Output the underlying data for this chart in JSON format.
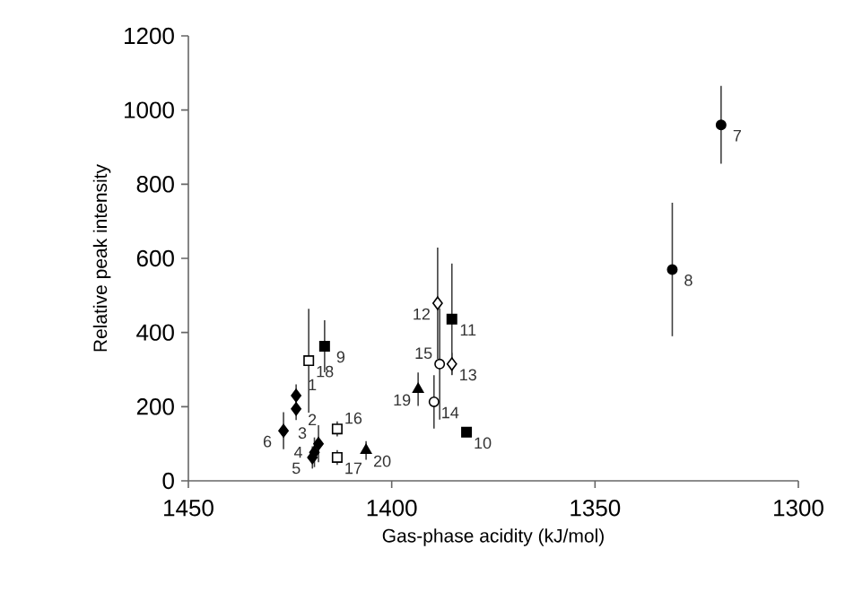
{
  "chart_data": {
    "type": "scatter",
    "xlabel": "Gas-phase acidity (kJ/mol)",
    "ylabel": "Relative peak intensity",
    "xlim": [
      1450,
      1300
    ],
    "xticks": [
      1450,
      1400,
      1350,
      1300
    ],
    "ylim": [
      0,
      1200
    ],
    "yticks": [
      0,
      200,
      400,
      600,
      800,
      1000,
      1200
    ],
    "grid": false,
    "series": [
      {
        "marker": "diamond",
        "color": "#000000",
        "x": [
          1423.5,
          1423.5,
          1418,
          1419,
          1419.5,
          1426.6
        ],
        "values": [
          230,
          194,
          100,
          77,
          63,
          135
        ],
        "errors": [
          30,
          30,
          50,
          40,
          30,
          50
        ]
      },
      {
        "marker": "circle",
        "color": "#000000",
        "x": [
          1319,
          1331
        ],
        "values": [
          960,
          570
        ],
        "errors": [
          105,
          180
        ]
      },
      {
        "marker": "square",
        "color": "#000000",
        "x": [
          1416.5,
          1381.6,
          1385.2
        ],
        "values": [
          363,
          131,
          436
        ],
        "errors": [
          70,
          null,
          150
        ]
      },
      {
        "marker": "diamond",
        "color": "#ffffff",
        "x": [
          1388.7,
          1385.2
        ],
        "values": [
          479,
          315
        ],
        "errors": [
          150,
          30
        ]
      },
      {
        "marker": "circle",
        "color": "#ffffff",
        "x": [
          1389.6,
          1388.2
        ],
        "values": [
          213,
          315
        ],
        "errors": [
          72,
          150
        ]
      },
      {
        "marker": "square",
        "color": "#ffffff",
        "x": [
          1413.4,
          1413.4,
          1420.4
        ],
        "values": [
          140,
          63,
          324
        ],
        "errors": [
          20,
          20,
          140
        ]
      },
      {
        "marker": "triangle",
        "color": "#000000",
        "x": [
          1393.5,
          1406.3
        ],
        "values": [
          247,
          82
        ],
        "errors": [
          45,
          25
        ]
      }
    ],
    "annotations": [
      {
        "text": "1",
        "x": 1423.5,
        "y": 230
      },
      {
        "text": "2",
        "x": 1423.5,
        "y": 194
      },
      {
        "text": "3",
        "x": 1418,
        "y": 100
      },
      {
        "text": "4",
        "x": 1419,
        "y": 77
      },
      {
        "text": "5",
        "x": 1419.5,
        "y": 63
      },
      {
        "text": "6",
        "x": 1426.6,
        "y": 135
      },
      {
        "text": "7",
        "x": 1319,
        "y": 960
      },
      {
        "text": "8",
        "x": 1331,
        "y": 570
      },
      {
        "text": "9",
        "x": 1416.5,
        "y": 363
      },
      {
        "text": "10",
        "x": 1381.6,
        "y": 131
      },
      {
        "text": "11",
        "x": 1385.2,
        "y": 436
      },
      {
        "text": "12",
        "x": 1388.7,
        "y": 479
      },
      {
        "text": "13",
        "x": 1385.2,
        "y": 315
      },
      {
        "text": "14",
        "x": 1389.6,
        "y": 213
      },
      {
        "text": "15",
        "x": 1388.2,
        "y": 315
      },
      {
        "text": "16",
        "x": 1413.4,
        "y": 140
      },
      {
        "text": "17",
        "x": 1413.4,
        "y": 63
      },
      {
        "text": "18",
        "x": 1420.4,
        "y": 324
      },
      {
        "text": "19",
        "x": 1393.5,
        "y": 247
      },
      {
        "text": "20",
        "x": 1406.3,
        "y": 82
      }
    ]
  }
}
